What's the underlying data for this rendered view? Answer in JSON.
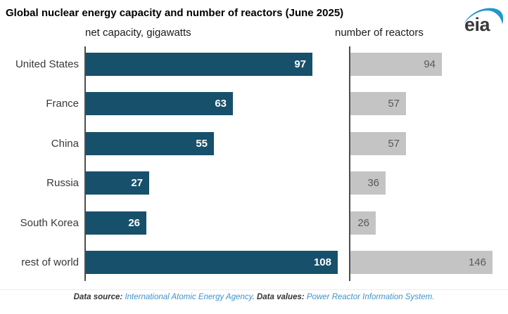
{
  "header": {
    "title": "Global nuclear energy capacity and number of reactors (June 2025)",
    "logo_text": "eia"
  },
  "chart_data": {
    "type": "bar",
    "orientation": "horizontal",
    "grid": false,
    "categories": [
      "United States",
      "France",
      "China",
      "Russia",
      "South Korea",
      "rest of world"
    ],
    "series": [
      {
        "name": "net capacity, gigawatts",
        "values": [
          97,
          63,
          55,
          27,
          26,
          108
        ],
        "color": "#17506b",
        "label_color": "#ffffff",
        "xlim": [
          0,
          108
        ]
      },
      {
        "name": "number of reactors",
        "values": [
          94,
          57,
          57,
          36,
          26,
          146
        ],
        "color": "#c4c4c4",
        "label_color": "#595959",
        "xlim": [
          0,
          146
        ]
      }
    ],
    "value_labels": "inside-end"
  },
  "footer": {
    "source_label": "Data source: ",
    "source_link": "International Atomic Energy Agency",
    "separator": ". ",
    "values_label": "Data values: ",
    "values_link": "Power Reactor Information System."
  },
  "colors": {
    "capacity_bar": "#17506b",
    "reactors_bar": "#c4c4c4",
    "capacity_label": "#ffffff",
    "reactors_label": "#595959",
    "axis_line": "#4d4d4d",
    "link": "#3e94ca",
    "logo_blue": "#2196cf"
  }
}
